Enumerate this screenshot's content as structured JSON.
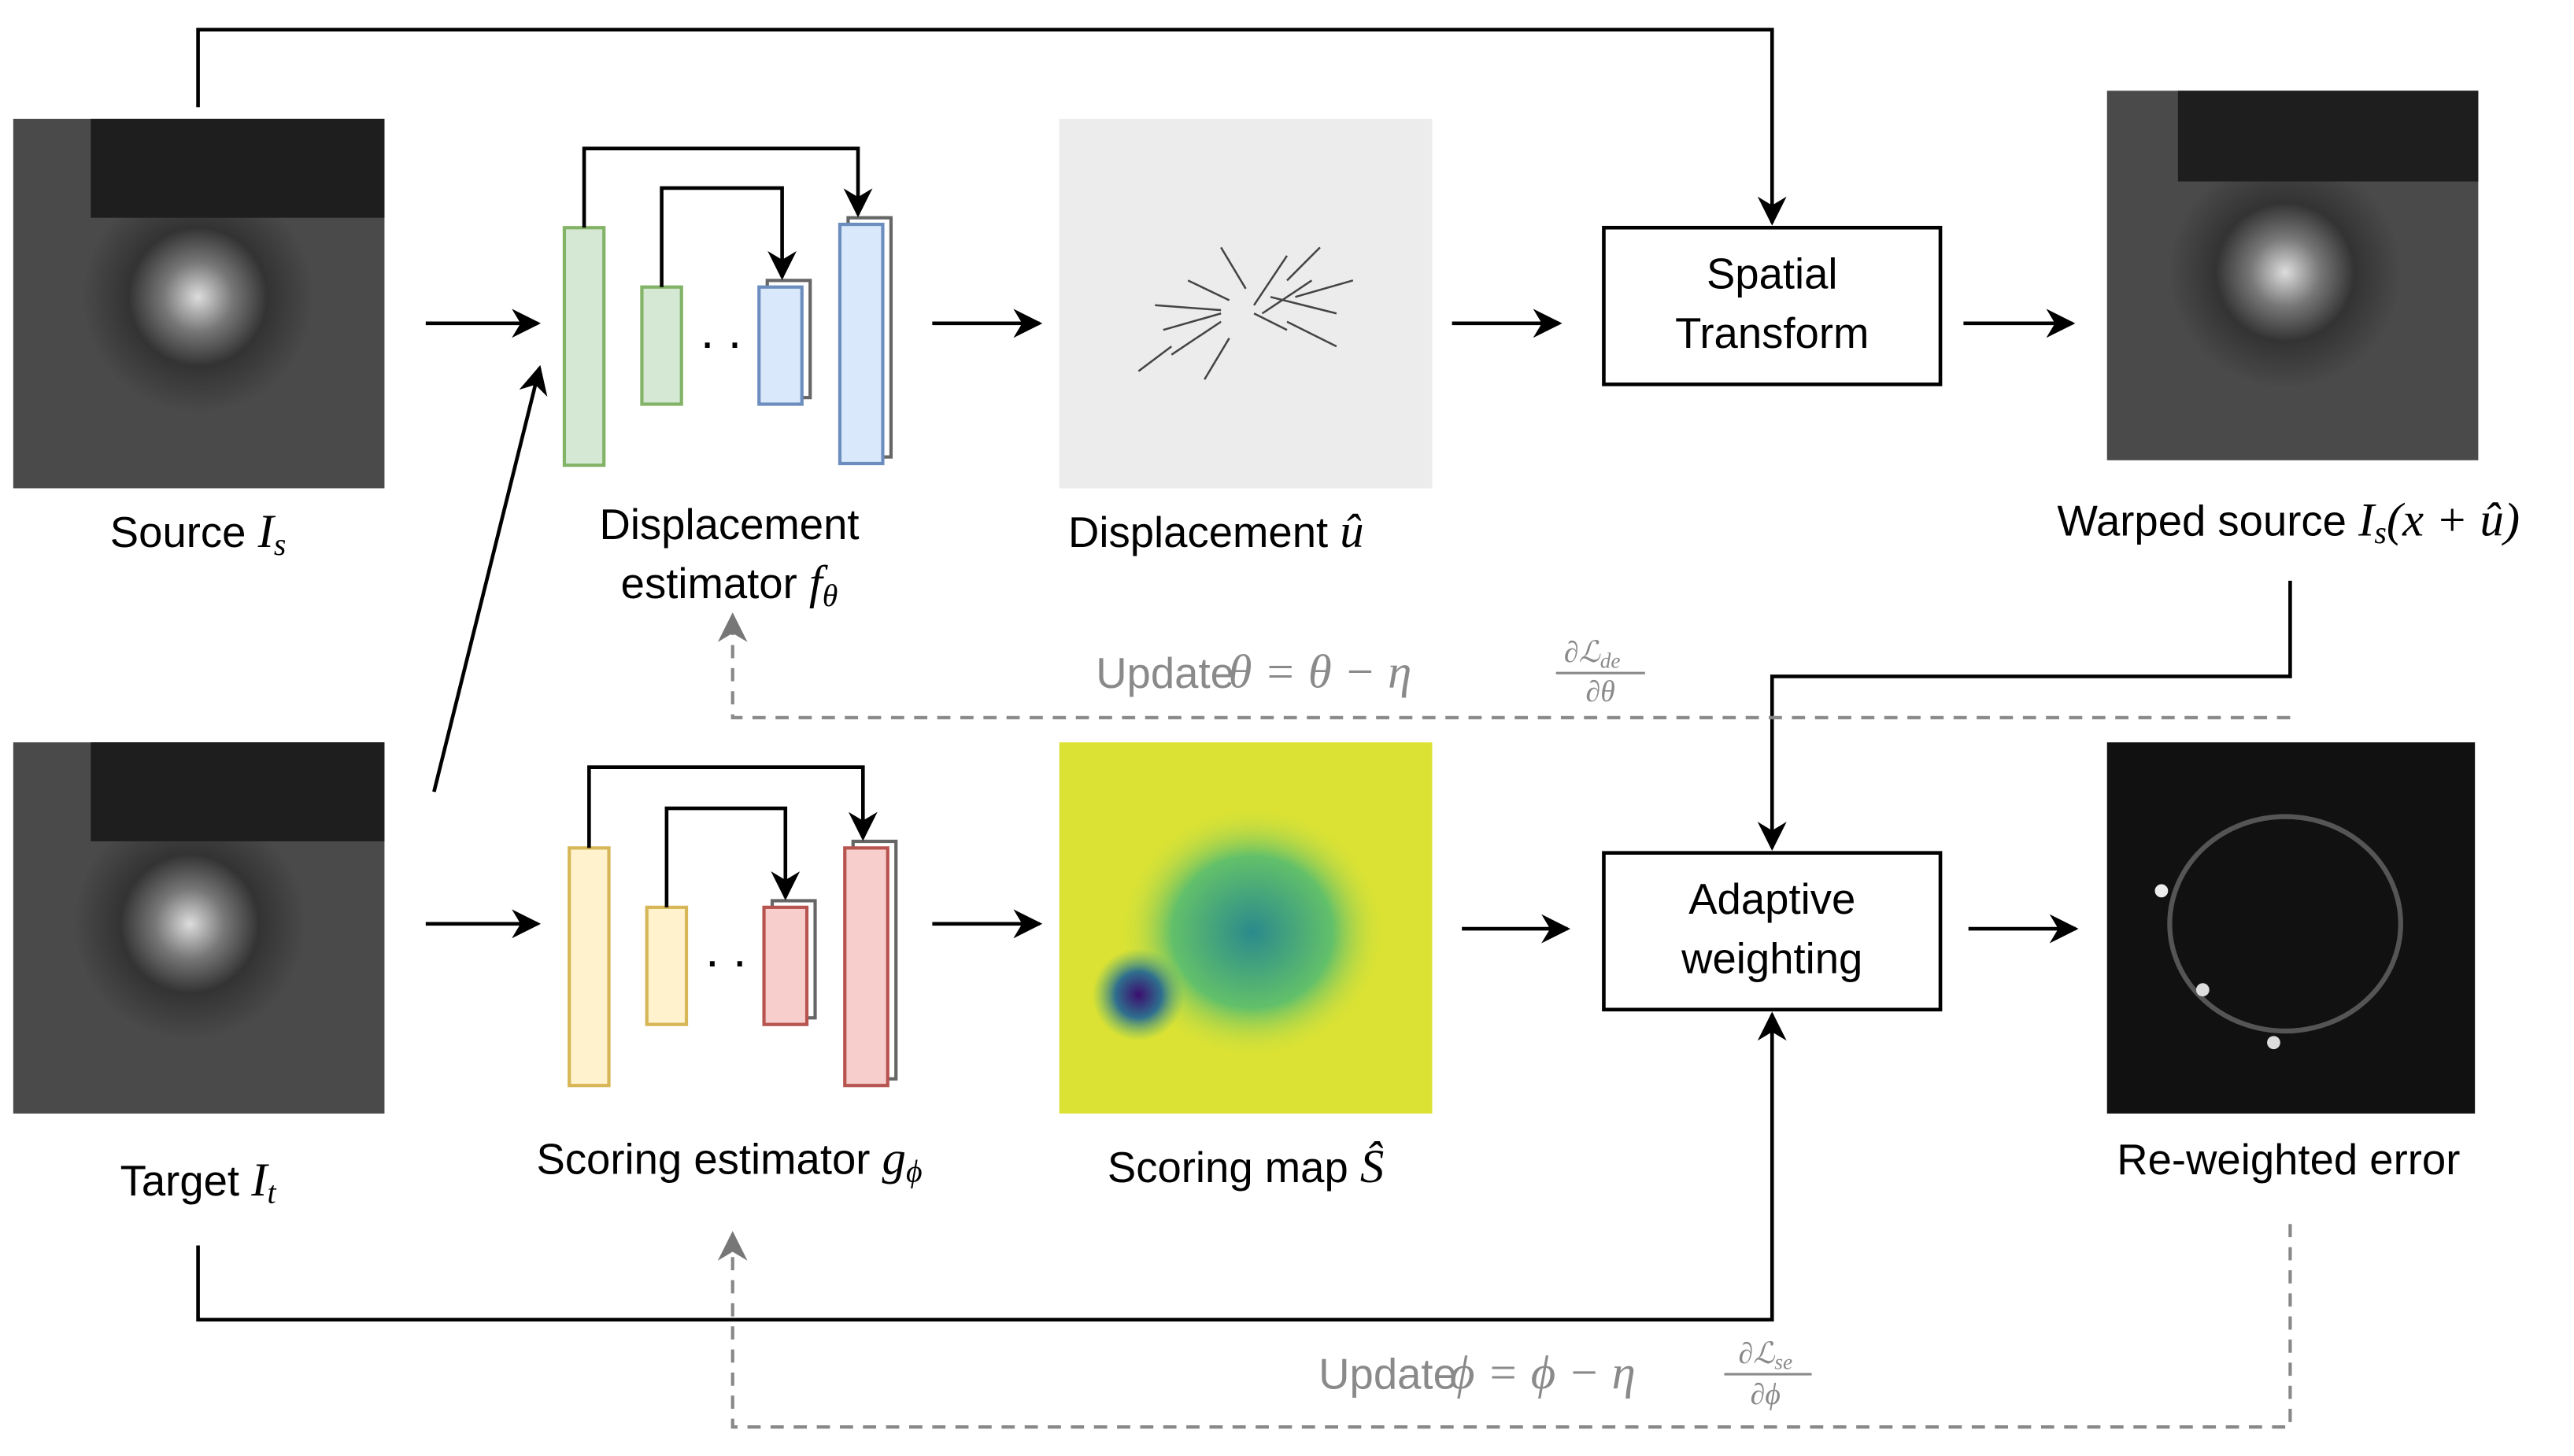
{
  "nodes": {
    "source": {
      "text": "Source",
      "math": "I",
      "sub": "s"
    },
    "target": {
      "text": "Target",
      "math": "I",
      "sub": "t"
    },
    "displacement_estimator": {
      "line1": "Displacement",
      "line2": "estimator",
      "math": "f",
      "sub": "θ"
    },
    "scoring_estimator": {
      "text": "Scoring estimator",
      "math": "g",
      "sub": "ϕ"
    },
    "displacement": {
      "text": "Displacement",
      "math": "û"
    },
    "scoring_map": {
      "text": "Scoring map",
      "math": "Ŝ"
    },
    "spatial_transform": {
      "line1": "Spatial",
      "line2": "Transform"
    },
    "adaptive_weighting": {
      "line1": "Adaptive",
      "line2": "weighting"
    },
    "warped_source": {
      "text": "Warped source",
      "math": "I",
      "sub": "s",
      "args": "(x + û)"
    },
    "reweighted_error": {
      "text": "Re-weighted error"
    }
  },
  "updates": {
    "theta": {
      "text": "Update",
      "expr": "θ = θ − η",
      "num": "∂ℒ",
      "num_sub": "de",
      "den": "∂θ"
    },
    "phi": {
      "text": "Update",
      "expr": "ϕ = ϕ − η",
      "num": "∂ℒ",
      "num_sub": "se",
      "den": "∂ϕ"
    }
  }
}
